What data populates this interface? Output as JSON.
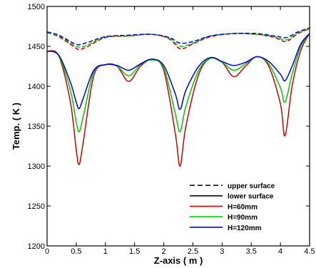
{
  "chart_data": {
    "type": "line",
    "xlabel": "Z-axis ( m )",
    "ylabel": "Temp. ( K )",
    "xlim": [
      0,
      4.5
    ],
    "ylim": [
      1200,
      1500
    ],
    "xticks": [
      "0",
      "0.5",
      "1",
      "1.5",
      "2",
      "2.5",
      "3",
      "3.5",
      "4",
      "4.5"
    ],
    "yticks": [
      "1200",
      "1250",
      "1300",
      "1350",
      "1400",
      "1450",
      "1500"
    ],
    "grid": false,
    "legend": {
      "placement": "bottom-right",
      "entries": [
        {
          "label": "upper surface",
          "color": "#000000",
          "dash": true
        },
        {
          "label": "lower surface",
          "color": "#000000",
          "dash": false
        },
        {
          "label": "H=60mm",
          "color": "#d00000",
          "dash": false
        },
        {
          "label": "H=90mm",
          "color": "#00c800",
          "dash": false
        },
        {
          "label": "H=120mm",
          "color": "#0000e0",
          "dash": false
        }
      ]
    },
    "series": [
      {
        "name": "H=60mm",
        "surface": "upper",
        "color": "#d00000",
        "dashed": true,
        "x": [
          0,
          0.2,
          0.45,
          0.55,
          0.7,
          1.0,
          1.4,
          1.8,
          2.1,
          2.28,
          2.5,
          2.8,
          3.2,
          3.6,
          3.9,
          4.1,
          4.3,
          4.5
        ],
        "y": [
          1467,
          1462,
          1450,
          1446,
          1450,
          1461,
          1463,
          1465,
          1459,
          1447,
          1453,
          1462,
          1466,
          1465,
          1461,
          1456,
          1466,
          1472
        ]
      },
      {
        "name": "H=90mm",
        "surface": "upper",
        "color": "#00c800",
        "dashed": true,
        "x": [
          0,
          0.2,
          0.45,
          0.55,
          0.7,
          1.0,
          1.4,
          1.8,
          2.1,
          2.28,
          2.5,
          2.8,
          3.2,
          3.6,
          3.9,
          4.1,
          4.3,
          4.5
        ],
        "y": [
          1467,
          1463,
          1452,
          1449,
          1452,
          1462,
          1463,
          1465,
          1460,
          1450,
          1454,
          1463,
          1466,
          1465,
          1462,
          1458,
          1467,
          1472
        ]
      },
      {
        "name": "H=120mm",
        "surface": "upper",
        "color": "#0000e0",
        "dashed": true,
        "x": [
          0,
          0.2,
          0.45,
          0.55,
          0.7,
          1.0,
          1.4,
          1.8,
          2.1,
          2.28,
          2.5,
          2.8,
          3.2,
          3.6,
          3.9,
          4.1,
          4.3,
          4.5
        ],
        "y": [
          1468,
          1464,
          1454,
          1452,
          1455,
          1462,
          1464,
          1465,
          1461,
          1454,
          1456,
          1463,
          1466,
          1466,
          1463,
          1461,
          1468,
          1473
        ]
      },
      {
        "name": "H=60mm",
        "surface": "lower",
        "color": "#d00000",
        "dashed": false,
        "x": [
          0,
          0.2,
          0.4,
          0.5,
          0.55,
          0.62,
          0.8,
          1.0,
          1.2,
          1.4,
          1.6,
          1.8,
          2.0,
          2.2,
          2.28,
          2.38,
          2.6,
          2.8,
          3.0,
          3.2,
          3.4,
          3.6,
          3.8,
          4.0,
          4.08,
          4.2,
          4.35,
          4.5
        ],
        "y": [
          1444,
          1438,
          1380,
          1320,
          1302,
          1330,
          1413,
          1427,
          1425,
          1406,
          1425,
          1433,
          1420,
          1340,
          1300,
          1350,
          1415,
          1435,
          1430,
          1412,
          1425,
          1437,
          1425,
          1378,
          1338,
          1400,
          1445,
          1466
        ]
      },
      {
        "name": "H=90mm",
        "surface": "lower",
        "color": "#00c800",
        "dashed": false,
        "x": [
          0,
          0.2,
          0.4,
          0.5,
          0.55,
          0.62,
          0.8,
          1.0,
          1.2,
          1.4,
          1.6,
          1.8,
          2.0,
          2.2,
          2.28,
          2.38,
          2.6,
          2.8,
          3.0,
          3.2,
          3.4,
          3.6,
          3.8,
          4.0,
          4.08,
          4.2,
          4.35,
          4.5
        ],
        "y": [
          1444,
          1438,
          1395,
          1355,
          1343,
          1362,
          1418,
          1427,
          1425,
          1413,
          1427,
          1433,
          1423,
          1365,
          1343,
          1375,
          1420,
          1435,
          1430,
          1420,
          1428,
          1437,
          1428,
          1398,
          1380,
          1415,
          1450,
          1466
        ]
      },
      {
        "name": "H=120mm",
        "surface": "lower",
        "color": "#0000e0",
        "dashed": false,
        "x": [
          0,
          0.2,
          0.4,
          0.5,
          0.55,
          0.62,
          0.8,
          1.0,
          1.2,
          1.4,
          1.6,
          1.8,
          2.0,
          2.2,
          2.28,
          2.38,
          2.6,
          2.8,
          3.0,
          3.2,
          3.4,
          3.6,
          3.8,
          4.0,
          4.08,
          4.2,
          4.35,
          4.5
        ],
        "y": [
          1444,
          1439,
          1405,
          1380,
          1372,
          1385,
          1420,
          1427,
          1426,
          1420,
          1428,
          1434,
          1426,
          1390,
          1371,
          1395,
          1425,
          1436,
          1431,
          1426,
          1430,
          1437,
          1431,
          1415,
          1407,
          1425,
          1453,
          1466
        ]
      }
    ]
  }
}
